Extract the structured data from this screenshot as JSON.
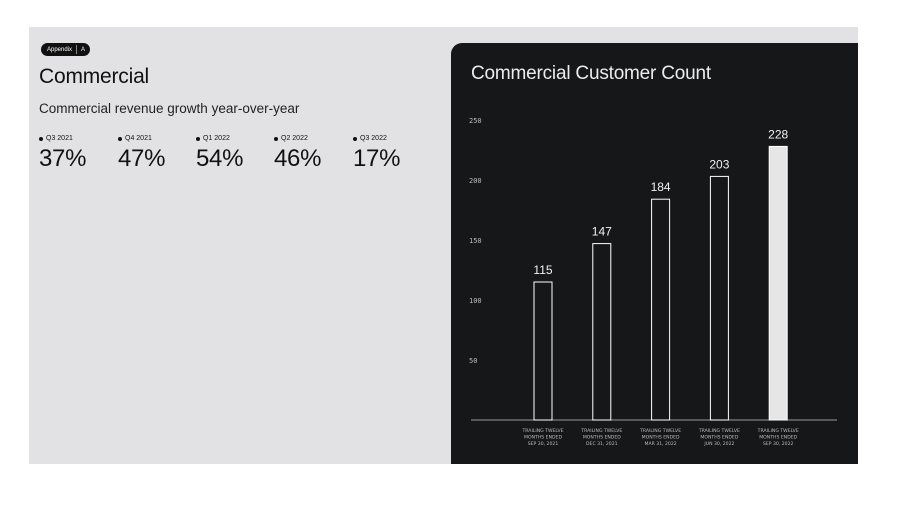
{
  "badge": {
    "label": "Appendix",
    "letter": "A"
  },
  "page": {
    "title": "Commercial",
    "subtitle": "Commercial revenue growth year-over-year"
  },
  "stats": [
    {
      "quarter": "Q3 2021",
      "value": "37%"
    },
    {
      "quarter": "Q4 2021",
      "value": "47%"
    },
    {
      "quarter": "Q1 2022",
      "value": "54%"
    },
    {
      "quarter": "Q2 2022",
      "value": "46%"
    },
    {
      "quarter": "Q3 2022",
      "value": "17%"
    }
  ],
  "colors": {
    "slide_bg": "#e2e2e4",
    "card_bg": "#161718",
    "bar_outline": "#ffffff",
    "bar_highlight_fill": "#e6e6e6",
    "axis_text": "#bdbdbd"
  },
  "chart_data": {
    "type": "bar",
    "title": "Commercial Customer Count",
    "xlabel": "",
    "ylabel": "",
    "ylim": [
      0,
      250
    ],
    "yticks": [
      50,
      100,
      150,
      200,
      250
    ],
    "grid": false,
    "categories": [
      [
        "TRAILING TWELVE",
        "MONTHS ENDED",
        "SEP 30, 2021"
      ],
      [
        "TRAILING TWELVE",
        "MONTHS ENDED",
        "DEC 31, 2021"
      ],
      [
        "TRAILING TWELVE",
        "MONTHS ENDED",
        "MAR 31, 2022"
      ],
      [
        "TRAILING TWELVE",
        "MONTHS ENDED",
        "JUN 30, 2022"
      ],
      [
        "TRAILING TWELVE",
        "MONTHS ENDED",
        "SEP 30, 2022"
      ]
    ],
    "values": [
      115,
      147,
      184,
      203,
      228
    ],
    "data_labels": [
      "115",
      "147",
      "184",
      "203",
      "228"
    ],
    "highlight_index": 4
  }
}
